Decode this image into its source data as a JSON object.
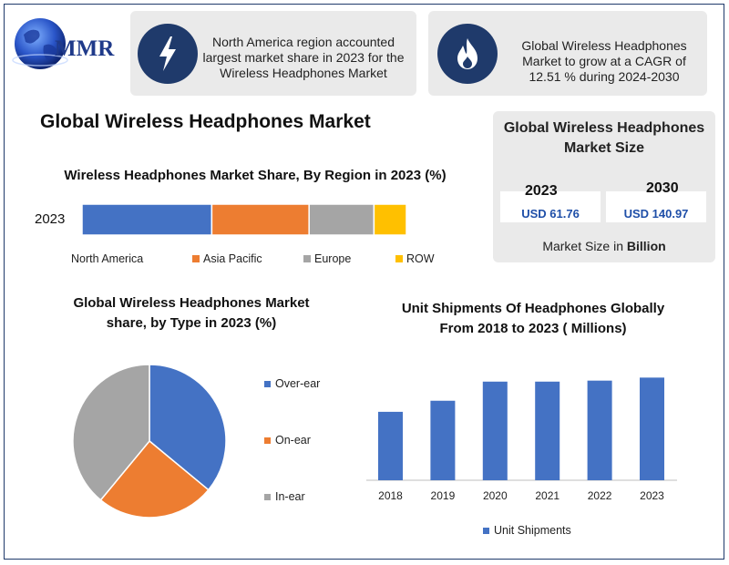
{
  "brand": {
    "logo_text": "MMR"
  },
  "banners": [
    {
      "icon": "lightning-icon",
      "text": "North America region accounted largest market share in 2023 for the Wireless Headphones Market"
    },
    {
      "icon": "flame-icon",
      "text": "Global Wireless Headphones Market to grow at a CAGR of 12.51 % during 2024-2030"
    }
  ],
  "main_title": "Global Wireless Headphones Market",
  "market_size": {
    "title": "Global Wireless Headphones Market Size",
    "cards": [
      {
        "year": "2023",
        "value": "USD 61.76"
      },
      {
        "year": "2030",
        "value": "USD 140.97"
      }
    ],
    "note_prefix": "Market Size in ",
    "note_bold": "Billion"
  },
  "colors": {
    "blue": "#4472c4",
    "orange": "#ed7d31",
    "gray": "#a5a5a5",
    "yellow": "#ffc000",
    "navy": "#1f3a6b"
  },
  "chart_data": [
    {
      "type": "bar",
      "orientation": "horizontal-stacked",
      "title": "Wireless Headphones Market Share, By Region in 2023 (%)",
      "categories": [
        "2023"
      ],
      "series": [
        {
          "name": "North America",
          "values": [
            40
          ],
          "color": "#4472c4"
        },
        {
          "name": "Asia Pacific",
          "values": [
            30
          ],
          "color": "#ed7d31"
        },
        {
          "name": "Europe",
          "values": [
            20
          ],
          "color": "#a5a5a5"
        },
        {
          "name": "ROW",
          "values": [
            10
          ],
          "color": "#ffc000"
        }
      ],
      "legend": "bottom"
    },
    {
      "type": "pie",
      "title": "Global Wireless Headphones Market share, by Type in 2023 (%)",
      "categories": [
        "Over-ear",
        "On-ear",
        "In-ear"
      ],
      "values": [
        36,
        25,
        39
      ],
      "colors": [
        "#4472c4",
        "#ed7d31",
        "#a5a5a5"
      ],
      "legend": "right"
    },
    {
      "type": "bar",
      "title": "Unit Shipments Of Headphones Globally From 2018 to 2023 ( Millions)",
      "categories": [
        "2018",
        "2019",
        "2020",
        "2021",
        "2022",
        "2023"
      ],
      "series": [
        {
          "name": "Unit Shipments",
          "values": [
            68,
            79,
            98,
            98,
            99,
            102
          ],
          "color": "#4472c4"
        }
      ],
      "ylim": [
        0,
        115
      ],
      "legend": "bottom"
    }
  ]
}
